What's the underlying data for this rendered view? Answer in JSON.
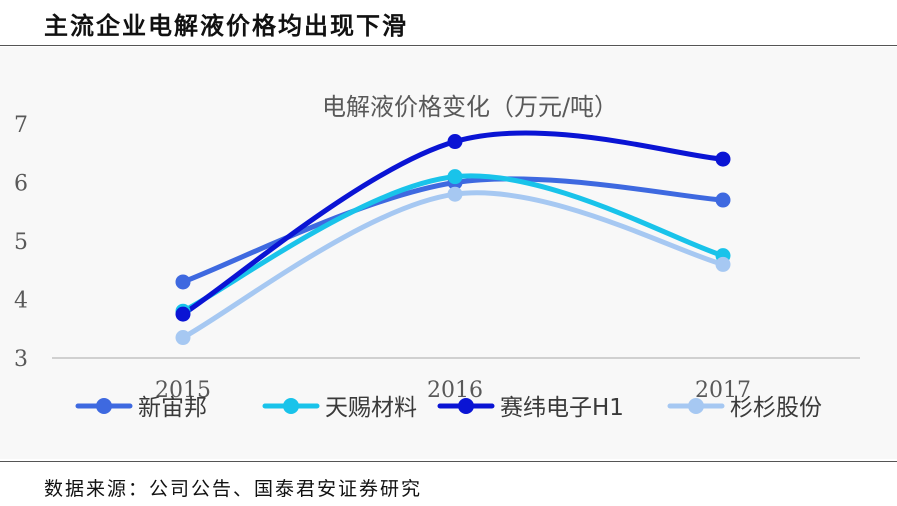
{
  "header": {
    "title": "主流企业电解液价格均出现下滑"
  },
  "footer": {
    "source": "数据来源：公司公告、国泰君安证券研究"
  },
  "chart_data": {
    "type": "line",
    "title": "电解液价格变化（万元/吨）",
    "x": [
      "2015",
      "2016",
      "2017"
    ],
    "ylim": [
      3,
      7
    ],
    "yticks": [
      3,
      4,
      5,
      6,
      7
    ],
    "smooth": true,
    "grid": false,
    "legend_position": "bottom",
    "series": [
      {
        "name": "新宙邦",
        "color": "#3e69e0",
        "values": [
          4.3,
          6.0,
          5.7
        ]
      },
      {
        "name": "天赐材料",
        "color": "#19c3ea",
        "values": [
          3.8,
          6.1,
          4.75
        ]
      },
      {
        "name": "赛纬电子H1",
        "color": "#0a14d4",
        "values": [
          3.75,
          6.7,
          6.4
        ]
      },
      {
        "name": "杉杉股份",
        "color": "#a6c8f2",
        "values": [
          3.35,
          5.8,
          4.6
        ]
      }
    ]
  }
}
